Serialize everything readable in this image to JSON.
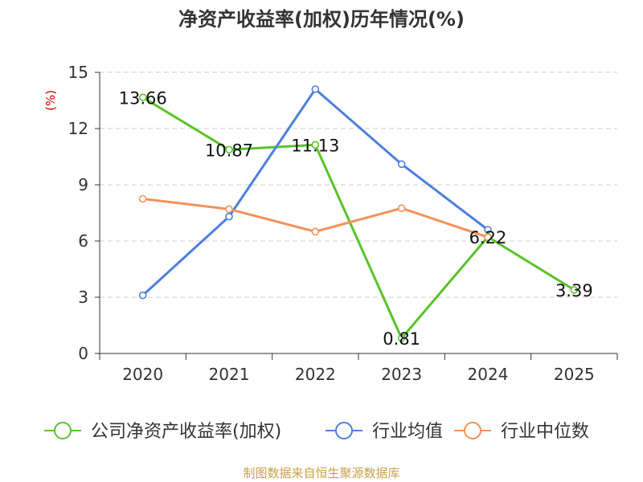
{
  "chart_data": {
    "type": "line",
    "title": "净资产收益率(加权)历年情况(%)",
    "ylabel": "(%)",
    "xlabel": "",
    "categories": [
      "2020",
      "2021",
      "2022",
      "2023",
      "2024",
      "2025"
    ],
    "ylim": [
      0,
      15
    ],
    "yticks": [
      0,
      3,
      6,
      9,
      12,
      15
    ],
    "grid": true,
    "legend_position": "bottom",
    "series": [
      {
        "name": "公司净资产收益率(加权)",
        "color": "#5ac22a",
        "values": [
          13.66,
          10.87,
          11.13,
          0.81,
          6.22,
          3.39
        ],
        "labels": [
          "13.66",
          "10.87",
          "11.13",
          "0.81",
          "6.22",
          "3.39"
        ]
      },
      {
        "name": "行业均值",
        "color": "#4f7fdc",
        "values": [
          3.1,
          7.3,
          14.1,
          10.1,
          6.6,
          null
        ]
      },
      {
        "name": "行业中位数",
        "color": "#f4915a",
        "values": [
          8.25,
          7.7,
          6.5,
          7.75,
          6.2,
          null
        ]
      }
    ],
    "source_note": "制图数据来自恒生聚源数据库"
  },
  "colors": {
    "title": "#333333",
    "ylabel": "#cc0000",
    "axis": "#333333",
    "grid": "#cccccc",
    "source": "#c8a04a"
  }
}
